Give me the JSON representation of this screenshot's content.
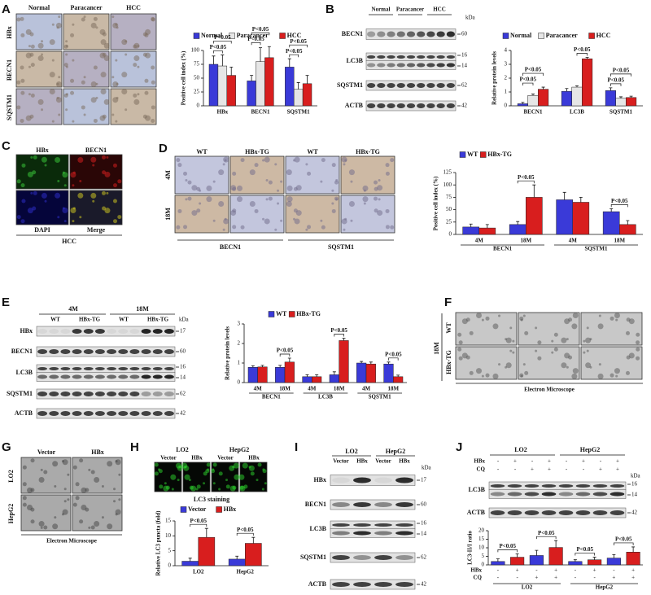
{
  "A": {
    "letter": "A",
    "columns": [
      "Normal",
      "Paracancer",
      "HCC"
    ],
    "rows": [
      "HBx",
      "BECN1",
      "SQSTM1"
    ],
    "chart": {
      "type": "bar",
      "y_label": "Positive cell index (%)",
      "categories": [
        "HBx",
        "BECN1",
        "SQSTM1"
      ],
      "series": [
        {
          "name": "Normal",
          "color": "#3a3ad8",
          "values": [
            75,
            45,
            70
          ],
          "errors": [
            15,
            10,
            15
          ]
        },
        {
          "name": "Paracancer",
          "color": "#e6e6e6",
          "values": [
            72,
            80,
            30
          ],
          "errors": [
            20,
            25,
            12
          ]
        },
        {
          "name": "HCC",
          "color": "#d81e1e",
          "values": [
            55,
            87,
            40
          ],
          "errors": [
            15,
            20,
            15
          ]
        }
      ],
      "ylim": [
        0,
        100
      ],
      "yticks": [
        0,
        25,
        50,
        75,
        100
      ],
      "annotations": [
        "P<0.05",
        "P<0.05",
        "P<0.05",
        "P<0.05",
        "P<0.05",
        "P<0.05"
      ]
    }
  },
  "B": {
    "letter": "B",
    "columns": [
      "Normal",
      "Paracancer",
      "HCC"
    ],
    "rows": [
      "BECN1",
      "LC3B",
      "SQSTM1",
      "ACTB"
    ],
    "kda_label": "kDa",
    "markers": [
      60,
      16,
      14,
      62,
      42
    ],
    "chart": {
      "type": "bar",
      "y_label": "Relative protein levels",
      "categories": [
        "BECN1",
        "LC3B",
        "SQSTM1"
      ],
      "series": [
        {
          "name": "Normal",
          "color": "#3a3ad8",
          "values": [
            0.15,
            1.05,
            1.1
          ],
          "errors": [
            0.1,
            0.2,
            0.2
          ]
        },
        {
          "name": "Paracancer",
          "color": "#e6e6e6",
          "values": [
            0.75,
            1.35,
            0.55
          ],
          "errors": [
            0.1,
            0.1,
            0.1
          ]
        },
        {
          "name": "HCC",
          "color": "#d81e1e",
          "values": [
            1.2,
            3.4,
            0.6
          ],
          "errors": [
            0.15,
            0.1,
            0.1
          ]
        }
      ],
      "ylim": [
        0,
        4
      ],
      "yticks": [
        0,
        1,
        2,
        3,
        4
      ],
      "annotations": [
        "P<0.05",
        "P<0.05",
        "P<0.05",
        "P<0.05",
        "P<0.05"
      ]
    }
  },
  "C": {
    "letter": "C",
    "labels": [
      "HBx",
      "BECN1",
      "DAPI",
      "Merge"
    ],
    "caption": "HCC"
  },
  "D": {
    "letter": "D",
    "columns": [
      "WT",
      "HBx-TG",
      "WT",
      "HBx-TG"
    ],
    "rows": [
      "4M",
      "18M"
    ],
    "captions": [
      "BECN1",
      "SQSTM1"
    ],
    "chart": {
      "type": "bar",
      "y_label": "Positive cell index (%)",
      "categories": [
        "4M",
        "18M",
        "4M",
        "18M"
      ],
      "group_labels": [
        "BECN1",
        "SQSTM1"
      ],
      "series": [
        {
          "name": "WT",
          "color": "#3a3ad8",
          "values": [
            15,
            20,
            70,
            46
          ],
          "errors": [
            6,
            6,
            15,
            6
          ]
        },
        {
          "name": "HBx-TG",
          "color": "#d81e1e",
          "values": [
            13,
            75,
            65,
            20
          ],
          "errors": [
            7,
            25,
            10,
            8
          ]
        }
      ],
      "ylim": [
        0,
        125
      ],
      "yticks": [
        0,
        25,
        50,
        75,
        100,
        125
      ],
      "annotations": [
        "P<0.05",
        "P<0.05"
      ]
    }
  },
  "E": {
    "letter": "E",
    "groups": [
      "4M",
      "18M"
    ],
    "lanes": [
      "WT",
      "HBx-TG",
      "WT",
      "HBx-TG"
    ],
    "rows": [
      "HBx",
      "BECN1",
      "LC3B",
      "SQSTM1",
      "ACTB"
    ],
    "kda_label": "kDa",
    "markers": [
      17,
      60,
      16,
      14,
      62,
      42
    ],
    "chart": {
      "type": "bar",
      "y_label": "Relative protein levels",
      "categories": [
        "4M",
        "18M",
        "4M",
        "18M",
        "4M",
        "18M"
      ],
      "group_labels": [
        "BECN1",
        "LC3B",
        "SQSTM1"
      ],
      "series": [
        {
          "name": "WT",
          "color": "#3a3ad8",
          "values": [
            0.78,
            0.78,
            0.3,
            0.4,
            1.0,
            0.95
          ],
          "errors": [
            0.08,
            0.1,
            0.1,
            0.15,
            0.08,
            0.1
          ]
        },
        {
          "name": "HBx-TG",
          "color": "#d81e1e",
          "values": [
            0.8,
            1.05,
            0.3,
            2.15,
            0.95,
            0.3
          ],
          "errors": [
            0.08,
            0.2,
            0.1,
            0.12,
            0.1,
            0.08
          ]
        }
      ],
      "ylim": [
        0,
        3
      ],
      "yticks": [
        0,
        1,
        2,
        3
      ],
      "annotations": [
        "P<0.05",
        "P<0.05",
        "P<0.05"
      ]
    }
  },
  "F": {
    "letter": "F",
    "rows": [
      "WT",
      "HBx-TG"
    ],
    "group": "18M",
    "caption": "Electron Microscope"
  },
  "G": {
    "letter": "G",
    "columns": [
      "Vector",
      "HBx"
    ],
    "rows": [
      "LO2",
      "HepG2"
    ],
    "caption": "Electron Microscope"
  },
  "H": {
    "letter": "H",
    "groups": [
      "LO2",
      "HepG2"
    ],
    "lanes": [
      "Vector",
      "HBx",
      "Vector",
      "HBx"
    ],
    "caption": "LC3 staining",
    "chart": {
      "type": "bar",
      "y_label": "Relative LC3 puncta (fold)",
      "categories": [
        "LO2",
        "HepG2"
      ],
      "series": [
        {
          "name": "Vector",
          "color": "#3a3ad8",
          "values": [
            1.5,
            2.2
          ],
          "errors": [
            1,
            1
          ]
        },
        {
          "name": "HBx",
          "color": "#d81e1e",
          "values": [
            9.5,
            7.5
          ],
          "errors": [
            3,
            2
          ]
        }
      ],
      "ylim": [
        0,
        15
      ],
      "yticks": [
        0,
        5,
        10,
        15
      ],
      "annotations": [
        "P<0.05",
        "P<0.05"
      ]
    }
  },
  "I": {
    "letter": "I",
    "groups": [
      "LO2",
      "HepG2"
    ],
    "lanes": [
      "Vector",
      "HBx",
      "Vector",
      "HBx"
    ],
    "rows": [
      "HBx",
      "BECN1",
      "LC3B",
      "SQSTM1",
      "ACTB"
    ],
    "kda_label": "kDa",
    "markers": [
      17,
      60,
      16,
      14,
      62,
      42
    ]
  },
  "J": {
    "letter": "J",
    "groups": [
      "LO2",
      "HepG2"
    ],
    "treatment_rows": [
      {
        "label": "HBx",
        "signs": [
          "-",
          "+",
          "-",
          "+",
          "-",
          "+",
          "-",
          "+"
        ]
      },
      {
        "label": "CQ",
        "signs": [
          "-",
          "-",
          "+",
          "+",
          "-",
          "-",
          "+",
          "+"
        ]
      }
    ],
    "rows": [
      "LC3B",
      "ACTB"
    ],
    "kda_label": "kDa",
    "markers": [
      16,
      14,
      42
    ],
    "chart": {
      "type": "bar",
      "y_label": "LC3-II/I ratio",
      "categories": [
        null,
        null,
        null,
        null,
        null,
        null,
        null,
        null
      ],
      "group_labels": [
        "LO2",
        "HepG2"
      ],
      "values": [
        2,
        4.5,
        5.5,
        10.2,
        2,
        3,
        4,
        7.5
      ],
      "errors": [
        1.5,
        2,
        3,
        4,
        1,
        1.5,
        2,
        3
      ],
      "colors": [
        "#3a3ad8",
        "#d81e1e",
        "#3a3ad8",
        "#d81e1e",
        "#3a3ad8",
        "#d81e1e",
        "#3a3ad8",
        "#d81e1e"
      ],
      "sign_rows": [
        {
          "label": "HBx",
          "signs": [
            "-",
            "+",
            "-",
            "+",
            "-",
            "+",
            "-",
            "+"
          ]
        },
        {
          "label": "CQ",
          "signs": [
            "-",
            "-",
            "+",
            "+",
            "-",
            "-",
            "+",
            "+"
          ]
        }
      ],
      "ylim": [
        0,
        20
      ],
      "yticks": [
        0,
        5,
        10,
        15,
        20
      ],
      "annotations": [
        "P<0.05",
        "P<0.05",
        "P<0.05",
        "P<0.05"
      ]
    }
  }
}
